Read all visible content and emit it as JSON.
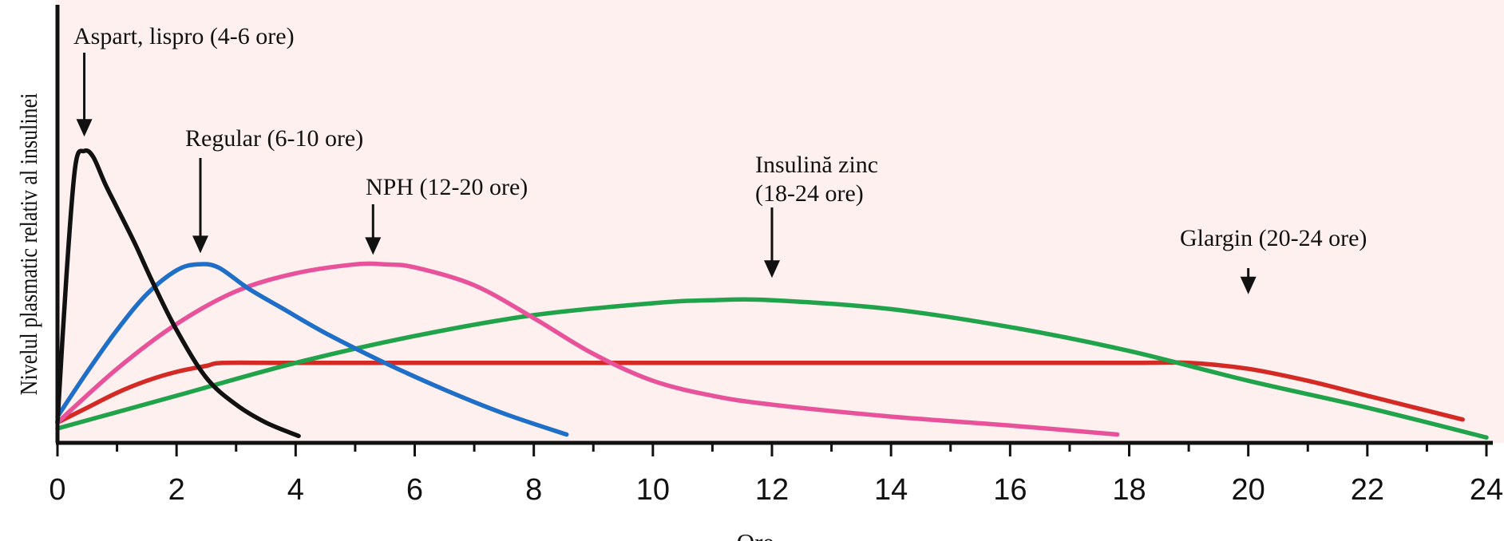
{
  "chart_data": {
    "type": "line",
    "title": "",
    "xlabel": "Ore",
    "ylabel": "Nivelul plasmatic relativ al insulinei",
    "xlim": [
      0,
      24
    ],
    "ylim": [
      0,
      1
    ],
    "x_ticks": [
      "0",
      "2",
      "4",
      "6",
      "8",
      "10",
      "12",
      "14",
      "16",
      "18",
      "20",
      "22",
      "24"
    ],
    "grid": false,
    "background": "#fdf0ee",
    "series": [
      {
        "color": "#111111",
        "x": [
          0,
          0.15,
          0.3,
          0.45,
          0.6,
          0.8,
          1.0,
          1.3,
          1.6,
          2.0,
          2.5,
          3.0,
          3.5,
          4.05
        ],
        "y": [
          0.06,
          0.55,
          0.92,
          0.97,
          0.95,
          0.86,
          0.78,
          0.66,
          0.53,
          0.37,
          0.21,
          0.12,
          0.06,
          0.015
        ]
      },
      {
        "color": "#1f6fc8",
        "x": [
          0,
          0.5,
          1.0,
          1.5,
          2.0,
          2.35,
          2.7,
          3.2,
          3.8,
          4.5,
          5.5,
          6.5,
          7.5,
          8.55
        ],
        "y": [
          0.08,
          0.23,
          0.37,
          0.49,
          0.57,
          0.59,
          0.58,
          0.51,
          0.44,
          0.36,
          0.26,
          0.17,
          0.09,
          0.02
        ]
      },
      {
        "color": "#e8529a",
        "x": [
          0,
          1,
          2,
          3,
          4,
          5,
          5.5,
          6,
          7,
          8,
          9,
          10,
          11,
          12,
          14,
          16,
          17.8
        ],
        "y": [
          0.06,
          0.24,
          0.39,
          0.5,
          0.56,
          0.59,
          0.59,
          0.58,
          0.52,
          0.41,
          0.29,
          0.2,
          0.15,
          0.12,
          0.08,
          0.05,
          0.02
        ]
      },
      {
        "color": "#20a34a",
        "x": [
          0,
          2,
          4,
          6,
          8,
          10,
          11,
          12,
          14,
          16,
          18,
          20,
          22,
          24
        ],
        "y": [
          0.04,
          0.15,
          0.26,
          0.35,
          0.42,
          0.46,
          0.47,
          0.47,
          0.44,
          0.38,
          0.3,
          0.2,
          0.11,
          0.01
        ]
      },
      {
        "color": "#d42a25",
        "x": [
          0,
          0.5,
          1,
          1.5,
          2,
          2.5,
          2.8,
          4,
          8,
          12,
          16,
          18,
          19,
          20,
          21,
          22,
          23,
          23.6
        ],
        "y": [
          0.06,
          0.11,
          0.16,
          0.2,
          0.23,
          0.25,
          0.26,
          0.26,
          0.26,
          0.26,
          0.26,
          0.26,
          0.26,
          0.24,
          0.2,
          0.15,
          0.1,
          0.07
        ]
      }
    ],
    "annotations": [
      {
        "text": "Aspart, lispro (4-6 ore)",
        "x": 0.45,
        "y": 0.97
      },
      {
        "text": "Regular (6-10 ore)",
        "x": 2.4,
        "y": 0.59
      },
      {
        "text": "NPH (12-20 ore)",
        "x": 5.3,
        "y": 0.59
      },
      {
        "text": "Insulină zinc",
        "x": 12,
        "y": 0.47
      },
      {
        "text": "(18-24 ore)",
        "x": 12,
        "y": 0.47
      },
      {
        "text": "Glargin (20-24 ore)",
        "x": 20,
        "y": 0.26
      }
    ]
  }
}
